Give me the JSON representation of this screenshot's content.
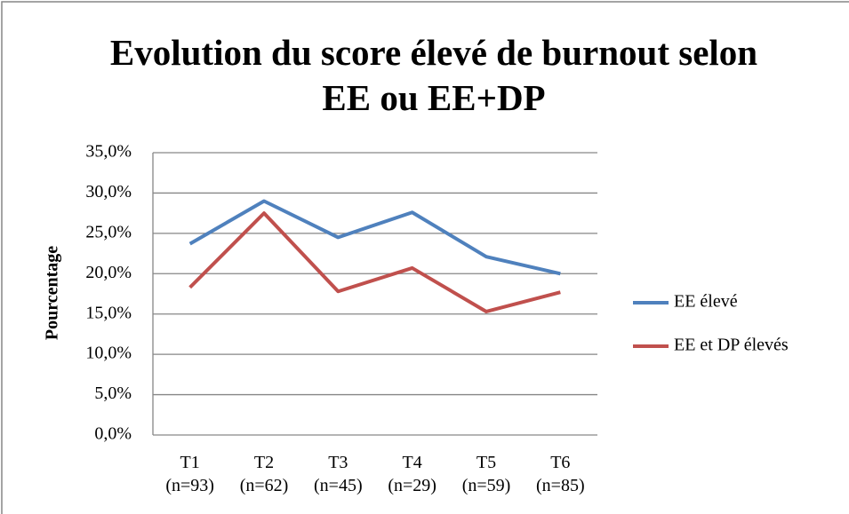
{
  "chart_data": {
    "type": "line",
    "title": "Evolution du score élevé de burnout selon EE ou EE+DP",
    "y_label": "Pourcentage",
    "categories": [
      "T1 (n=93)",
      "T2 (n=62)",
      "T3 (n=45)",
      "T4 (n=29)",
      "T5 (n=59)",
      "T6 (n=85)"
    ],
    "series": [
      {
        "name": "EE élevé",
        "color": "#4f81bd",
        "values": [
          23.7,
          29.0,
          24.5,
          27.6,
          22.1,
          20.0
        ]
      },
      {
        "name": "EE et DP élevés",
        "color": "#c0504d",
        "values": [
          18.3,
          27.5,
          17.8,
          20.7,
          15.3,
          17.7
        ]
      }
    ],
    "ylim": [
      0,
      35
    ],
    "yticks": [
      {
        "value": 0,
        "label": "0,0%"
      },
      {
        "value": 5,
        "label": "5,0%"
      },
      {
        "value": 10,
        "label": "10,0%"
      },
      {
        "value": 15,
        "label": "15,0%"
      },
      {
        "value": 20,
        "label": "20,0%"
      },
      {
        "value": 25,
        "label": "25,0%"
      },
      {
        "value": 30,
        "label": "30,0%"
      },
      {
        "value": 35,
        "label": "35,0%"
      }
    ],
    "grid": true,
    "legend": "right"
  }
}
